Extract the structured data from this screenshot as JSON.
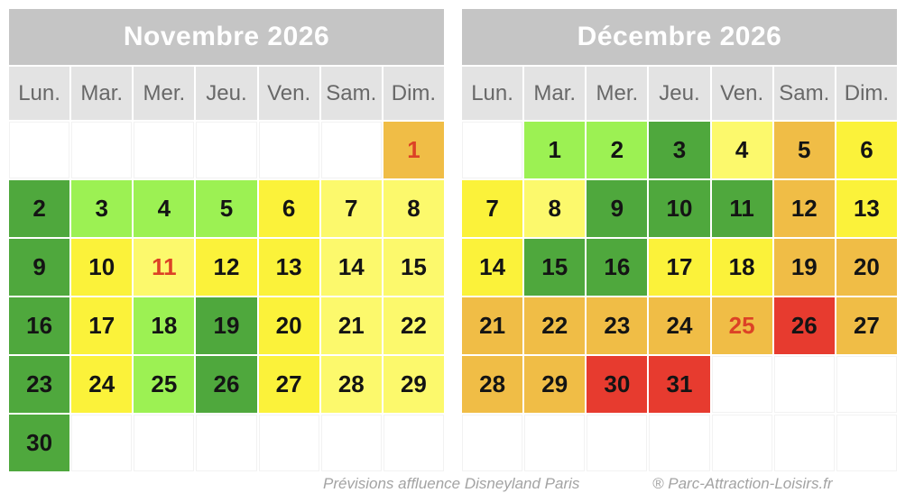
{
  "footer": {
    "caption": "Prévisions affluence Disneyland Paris",
    "brand": "® Parc-Attraction-Loisirs.fr"
  },
  "colors": {
    "month_header_bg": "#c5c5c5",
    "month_header_text": "#ffffff",
    "day_header_bg": "#e3e3e3",
    "day_header_text": "#686868",
    "day_number_text": "#141414",
    "holiday_number_text": "#dc4226",
    "footer_text": "#a3a3a3",
    "levels": {
      "green": "#4fa83d",
      "lightgreen": "#9cf153",
      "yellow": "#fbf23a",
      "paleyellow": "#fcf96c",
      "orange": "#f0bd46",
      "red": "#e73b2f",
      "empty": "#ffffff"
    }
  },
  "months": [
    {
      "title": "Novembre 2026",
      "day_headers": [
        "Lun.",
        "Mar.",
        "Mer.",
        "Jeu.",
        "Ven.",
        "Sam.",
        "Dim."
      ],
      "cells": [
        {
          "day": "",
          "level": "empty"
        },
        {
          "day": "",
          "level": "empty"
        },
        {
          "day": "",
          "level": "empty"
        },
        {
          "day": "",
          "level": "empty"
        },
        {
          "day": "",
          "level": "empty"
        },
        {
          "day": "",
          "level": "empty"
        },
        {
          "day": "1",
          "level": "orange",
          "holiday": true
        },
        {
          "day": "2",
          "level": "green"
        },
        {
          "day": "3",
          "level": "lightgreen"
        },
        {
          "day": "4",
          "level": "lightgreen"
        },
        {
          "day": "5",
          "level": "lightgreen"
        },
        {
          "day": "6",
          "level": "yellow"
        },
        {
          "day": "7",
          "level": "paleyellow"
        },
        {
          "day": "8",
          "level": "paleyellow"
        },
        {
          "day": "9",
          "level": "green"
        },
        {
          "day": "10",
          "level": "yellow"
        },
        {
          "day": "11",
          "level": "paleyellow",
          "holiday": true
        },
        {
          "day": "12",
          "level": "yellow"
        },
        {
          "day": "13",
          "level": "yellow"
        },
        {
          "day": "14",
          "level": "paleyellow"
        },
        {
          "day": "15",
          "level": "paleyellow"
        },
        {
          "day": "16",
          "level": "green"
        },
        {
          "day": "17",
          "level": "yellow"
        },
        {
          "day": "18",
          "level": "lightgreen"
        },
        {
          "day": "19",
          "level": "green"
        },
        {
          "day": "20",
          "level": "yellow"
        },
        {
          "day": "21",
          "level": "paleyellow"
        },
        {
          "day": "22",
          "level": "paleyellow"
        },
        {
          "day": "23",
          "level": "green"
        },
        {
          "day": "24",
          "level": "yellow"
        },
        {
          "day": "25",
          "level": "lightgreen"
        },
        {
          "day": "26",
          "level": "green"
        },
        {
          "day": "27",
          "level": "yellow"
        },
        {
          "day": "28",
          "level": "paleyellow"
        },
        {
          "day": "29",
          "level": "paleyellow"
        },
        {
          "day": "30",
          "level": "green"
        },
        {
          "day": "",
          "level": "empty"
        },
        {
          "day": "",
          "level": "empty"
        },
        {
          "day": "",
          "level": "empty"
        },
        {
          "day": "",
          "level": "empty"
        },
        {
          "day": "",
          "level": "empty"
        },
        {
          "day": "",
          "level": "empty"
        }
      ]
    },
    {
      "title": "Décembre 2026",
      "day_headers": [
        "Lun.",
        "Mar.",
        "Mer.",
        "Jeu.",
        "Ven.",
        "Sam.",
        "Dim."
      ],
      "cells": [
        {
          "day": "",
          "level": "empty"
        },
        {
          "day": "1",
          "level": "lightgreen"
        },
        {
          "day": "2",
          "level": "lightgreen"
        },
        {
          "day": "3",
          "level": "green"
        },
        {
          "day": "4",
          "level": "paleyellow"
        },
        {
          "day": "5",
          "level": "orange"
        },
        {
          "day": "6",
          "level": "yellow"
        },
        {
          "day": "7",
          "level": "yellow"
        },
        {
          "day": "8",
          "level": "paleyellow"
        },
        {
          "day": "9",
          "level": "green"
        },
        {
          "day": "10",
          "level": "green"
        },
        {
          "day": "11",
          "level": "green"
        },
        {
          "day": "12",
          "level": "orange"
        },
        {
          "day": "13",
          "level": "yellow"
        },
        {
          "day": "14",
          "level": "yellow"
        },
        {
          "day": "15",
          "level": "green"
        },
        {
          "day": "16",
          "level": "green"
        },
        {
          "day": "17",
          "level": "yellow"
        },
        {
          "day": "18",
          "level": "yellow"
        },
        {
          "day": "19",
          "level": "orange"
        },
        {
          "day": "20",
          "level": "orange"
        },
        {
          "day": "21",
          "level": "orange"
        },
        {
          "day": "22",
          "level": "orange"
        },
        {
          "day": "23",
          "level": "orange"
        },
        {
          "day": "24",
          "level": "orange"
        },
        {
          "day": "25",
          "level": "orange",
          "holiday": true
        },
        {
          "day": "26",
          "level": "red"
        },
        {
          "day": "27",
          "level": "orange"
        },
        {
          "day": "28",
          "level": "orange"
        },
        {
          "day": "29",
          "level": "orange"
        },
        {
          "day": "30",
          "level": "red"
        },
        {
          "day": "31",
          "level": "red"
        },
        {
          "day": "",
          "level": "empty"
        },
        {
          "day": "",
          "level": "empty"
        },
        {
          "day": "",
          "level": "empty"
        },
        {
          "day": "",
          "level": "empty"
        },
        {
          "day": "",
          "level": "empty"
        },
        {
          "day": "",
          "level": "empty"
        },
        {
          "day": "",
          "level": "empty"
        },
        {
          "day": "",
          "level": "empty"
        },
        {
          "day": "",
          "level": "empty"
        },
        {
          "day": "",
          "level": "empty"
        }
      ]
    }
  ],
  "chart_data": {
    "type": "heatmap",
    "title": "Prévisions affluence Disneyland Paris",
    "legend_position": "none",
    "color_scale_categories": [
      "green",
      "lightgreen",
      "yellow",
      "paleyellow",
      "orange",
      "red"
    ],
    "series": [
      {
        "name": "Novembre 2026",
        "x": [
          1,
          2,
          3,
          4,
          5,
          6,
          7,
          8,
          9,
          10,
          11,
          12,
          13,
          14,
          15,
          16,
          17,
          18,
          19,
          20,
          21,
          22,
          23,
          24,
          25,
          26,
          27,
          28,
          29,
          30
        ],
        "values": [
          "orange",
          "green",
          "lightgreen",
          "lightgreen",
          "lightgreen",
          "yellow",
          "paleyellow",
          "paleyellow",
          "green",
          "yellow",
          "paleyellow",
          "yellow",
          "yellow",
          "paleyellow",
          "paleyellow",
          "green",
          "yellow",
          "lightgreen",
          "green",
          "yellow",
          "paleyellow",
          "paleyellow",
          "green",
          "yellow",
          "lightgreen",
          "green",
          "yellow",
          "paleyellow",
          "paleyellow",
          "green"
        ],
        "red_number_days": [
          1,
          11
        ]
      },
      {
        "name": "Décembre 2026",
        "x": [
          1,
          2,
          3,
          4,
          5,
          6,
          7,
          8,
          9,
          10,
          11,
          12,
          13,
          14,
          15,
          16,
          17,
          18,
          19,
          20,
          21,
          22,
          23,
          24,
          25,
          26,
          27,
          28,
          29,
          30,
          31
        ],
        "values": [
          "lightgreen",
          "lightgreen",
          "green",
          "paleyellow",
          "orange",
          "yellow",
          "yellow",
          "paleyellow",
          "green",
          "green",
          "green",
          "orange",
          "yellow",
          "yellow",
          "green",
          "green",
          "yellow",
          "yellow",
          "orange",
          "orange",
          "orange",
          "orange",
          "orange",
          "orange",
          "orange",
          "red",
          "orange",
          "orange",
          "orange",
          "red",
          "red"
        ],
        "red_number_days": [
          25
        ]
      }
    ]
  }
}
